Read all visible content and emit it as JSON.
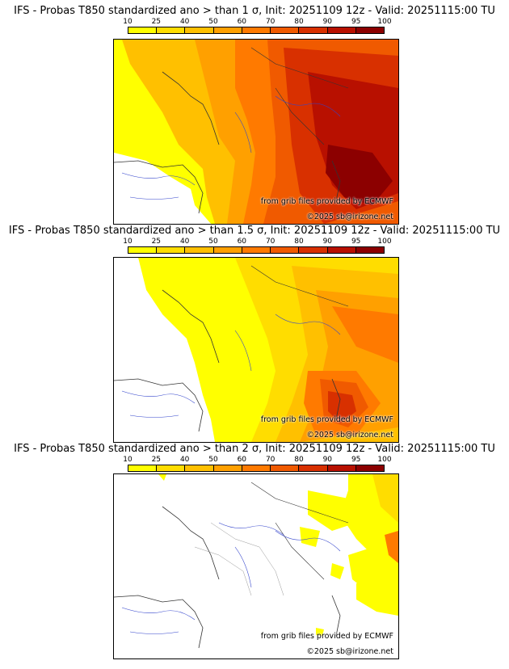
{
  "colorbar": {
    "labels": [
      "10",
      "25",
      "40",
      "50",
      "60",
      "70",
      "80",
      "90",
      "95",
      "100"
    ],
    "colors": [
      "#ffff00",
      "#ffdd00",
      "#ffc000",
      "#ffa000",
      "#ff7a00",
      "#f05a00",
      "#d83000",
      "#b81000",
      "#8c0000"
    ]
  },
  "panels": [
    {
      "title": "IFS - Probas T850  standardized ano > than 1 σ, Init: 20251109 12z - Valid: 20251115:00 TU",
      "level": "1 σ"
    },
    {
      "title": "IFS - Probas T850  standardized ano > than 1.5 σ, Init: 20251109 12z - Valid: 20251115:00 TU",
      "level": "1.5 σ"
    },
    {
      "title": "IFS - Probas T850  standardized ano > than 2 σ, Init: 20251109 12z - Valid: 20251115:00 TU",
      "level": "2 σ"
    }
  ],
  "credits": {
    "source": "from grib files provided by ECMWF",
    "copyright": "©2025 sb@irizone.net"
  }
}
